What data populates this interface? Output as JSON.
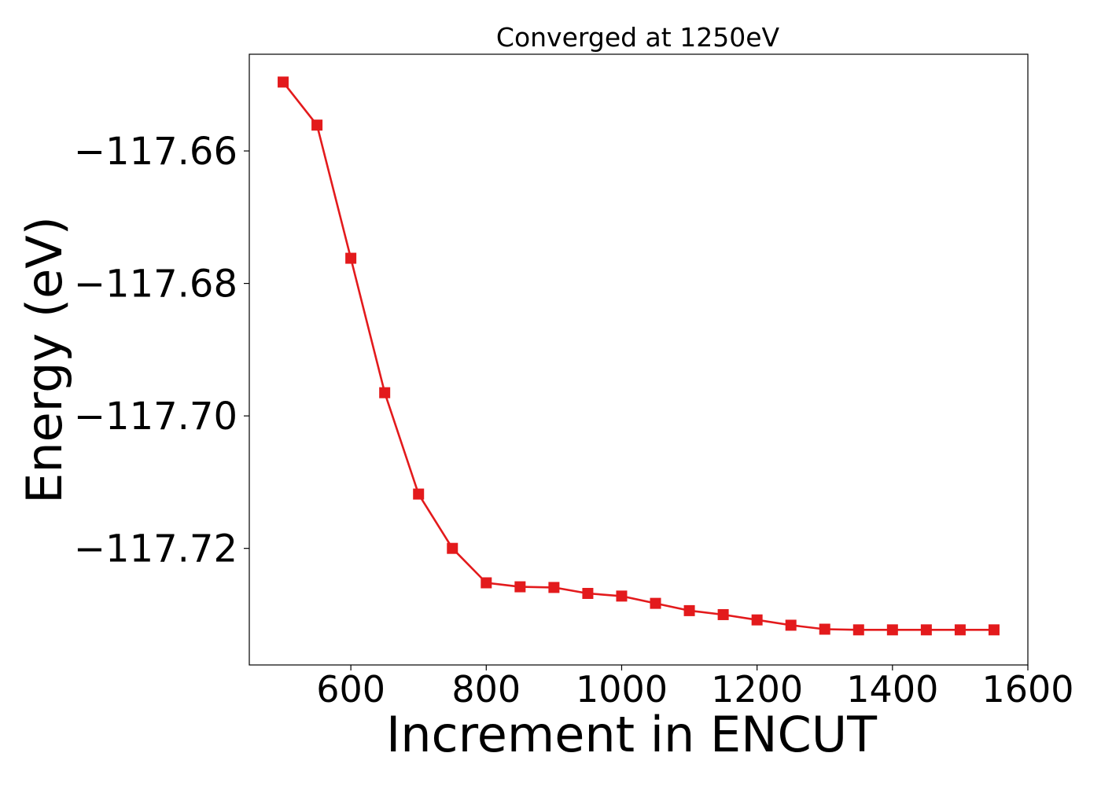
{
  "chart_data": {
    "type": "line",
    "title": "Converged at 1250eV",
    "xlabel": "Increment in ENCUT",
    "ylabel": "Energy (eV)",
    "xlim": [
      450,
      1600
    ],
    "ylim": [
      -117.7376,
      -117.6454
    ],
    "xticks": [
      600,
      800,
      1000,
      1200,
      1400,
      1600
    ],
    "xtick_labels": [
      "600",
      "800",
      "1000",
      "1200",
      "1400",
      "1600"
    ],
    "yticks": [
      -117.66,
      -117.68,
      -117.7,
      -117.72
    ],
    "ytick_labels": [
      "−117.66",
      "−117.68",
      "−117.70",
      "−117.72"
    ],
    "grid": false,
    "series": [
      {
        "color": "#e31a1c",
        "marker": "square",
        "x": [
          500,
          550,
          600,
          650,
          700,
          750,
          800,
          850,
          900,
          950,
          1000,
          1050,
          1100,
          1150,
          1200,
          1250,
          1300,
          1350,
          1400,
          1450,
          1500,
          1550
        ],
        "y": [
          -117.6496,
          -117.6561,
          -117.6762,
          -117.6965,
          -117.7118,
          -117.72,
          -117.7252,
          -117.7258,
          -117.7259,
          -117.7268,
          -117.7272,
          -117.7283,
          -117.7294,
          -117.73,
          -117.7308,
          -117.7316,
          -117.7322,
          -117.7323,
          -117.7323,
          -117.7323,
          -117.7323,
          -117.7323
        ]
      }
    ]
  }
}
